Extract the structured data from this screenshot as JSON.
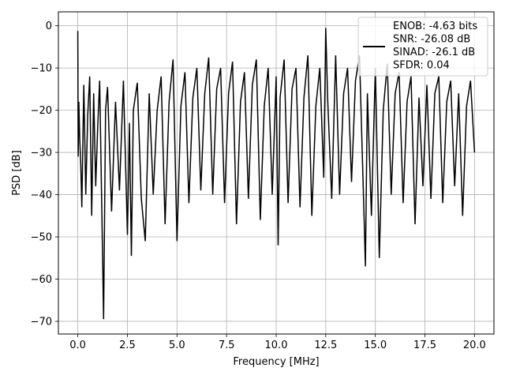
{
  "chart_data": {
    "type": "line",
    "title": "",
    "xlabel": "Frequency [MHz]",
    "ylabel": "PSD [dB]",
    "xlim": [
      -0.98,
      20.98
    ],
    "ylim": [
      -73.0,
      3.3
    ],
    "xticks": [
      0.0,
      2.5,
      5.0,
      7.5,
      10.0,
      12.5,
      15.0,
      17.5,
      20.0
    ],
    "xtick_labels": [
      "0.0",
      "2.5",
      "5.0",
      "7.5",
      "10.0",
      "12.5",
      "15.0",
      "17.5",
      "20.0"
    ],
    "yticks": [
      0,
      -10,
      -20,
      -30,
      -40,
      -50,
      -60,
      -70
    ],
    "ytick_labels": [
      "0",
      "−10",
      "−20",
      "−30",
      "−40",
      "−50",
      "−60",
      "−70"
    ],
    "grid": true,
    "legend_position": "top-right",
    "series": [
      {
        "color": "#000000",
        "legend_lines": [
          "ENOB: -4.63 bits",
          "SNR: -26.08 dB",
          "SINAD: -26.1 dB",
          "SFDR: 0.04"
        ],
        "x": [
          0.0,
          0.02,
          0.05,
          0.1,
          0.15,
          0.2,
          0.3,
          0.4,
          0.5,
          0.6,
          0.7,
          0.8,
          0.9,
          1.0,
          1.1,
          1.2,
          1.3,
          1.4,
          1.5,
          1.7,
          1.9,
          2.1,
          2.3,
          2.5,
          2.6,
          2.7,
          2.8,
          3.0,
          3.2,
          3.4,
          3.6,
          3.8,
          4.0,
          4.2,
          4.4,
          4.6,
          4.8,
          5.0,
          5.2,
          5.4,
          5.6,
          5.8,
          6.0,
          6.2,
          6.4,
          6.6,
          6.8,
          7.0,
          7.2,
          7.4,
          7.6,
          7.8,
          8.0,
          8.2,
          8.4,
          8.6,
          8.8,
          9.0,
          9.2,
          9.4,
          9.6,
          9.8,
          10.0,
          10.1,
          10.2,
          10.4,
          10.6,
          10.8,
          11.0,
          11.2,
          11.4,
          11.6,
          11.8,
          12.0,
          12.2,
          12.4,
          12.5,
          12.6,
          12.8,
          13.0,
          13.2,
          13.4,
          13.6,
          13.8,
          14.0,
          14.2,
          14.4,
          14.5,
          14.6,
          14.8,
          15.0,
          15.2,
          15.4,
          15.6,
          15.8,
          16.0,
          16.2,
          16.4,
          16.6,
          16.8,
          17.0,
          17.2,
          17.4,
          17.6,
          17.8,
          18.0,
          18.2,
          18.4,
          18.6,
          18.8,
          19.0,
          19.2,
          19.4,
          19.6,
          19.8,
          20.0
        ],
        "y": [
          -1.2,
          -31.0,
          -18.0,
          -27.0,
          -33.0,
          -43.0,
          -14.0,
          -40.0,
          -21.0,
          -12.0,
          -45.0,
          -16.0,
          -38.0,
          -24.0,
          -13.0,
          -41.0,
          -69.5,
          -20.0,
          -14.5,
          -44.0,
          -18.0,
          -39.0,
          -13.0,
          -49.5,
          -23.0,
          -54.5,
          -20.0,
          -13.5,
          -41.0,
          -51.0,
          -16.0,
          -40.0,
          -20.0,
          -12.0,
          -47.0,
          -18.0,
          -8.0,
          -51.0,
          -19.0,
          -11.0,
          -42.0,
          -17.0,
          -10.0,
          -39.0,
          -16.0,
          -7.5,
          -40.0,
          -15.0,
          -10.0,
          -42.0,
          -16.0,
          -8.5,
          -47.0,
          -18.0,
          -11.0,
          -41.0,
          -14.0,
          -8.0,
          -46.0,
          -19.0,
          -10.0,
          -40.0,
          -12.0,
          -52.0,
          -17.0,
          -8.0,
          -42.0,
          -15.0,
          -10.0,
          -43.0,
          -17.0,
          -7.0,
          -45.0,
          -19.0,
          -10.0,
          -36.0,
          -0.5,
          -18.0,
          -41.0,
          -7.0,
          -40.0,
          -16.0,
          -10.0,
          -37.0,
          -13.0,
          -7.0,
          -40.0,
          -57.0,
          -16.0,
          -45.0,
          -10.0,
          -55.0,
          -20.0,
          -9.0,
          -40.0,
          -16.0,
          -11.0,
          -42.0,
          -18.0,
          -12.0,
          -47.0,
          -17.0,
          -38.0,
          -14.0,
          -41.0,
          -16.0,
          -12.0,
          -42.0,
          -18.0,
          -13.0,
          -38.0,
          -16.0,
          -45.0,
          -19.0,
          -13.0,
          -30.0
        ]
      }
    ]
  }
}
